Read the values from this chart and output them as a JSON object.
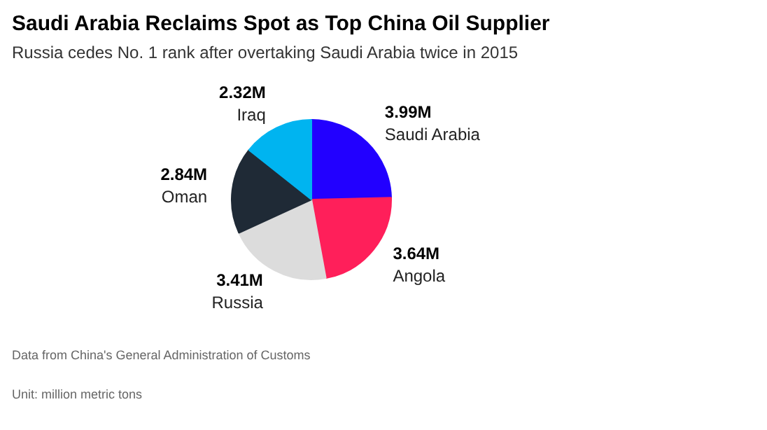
{
  "chart_data": {
    "type": "pie",
    "title": "Saudi Arabia Reclaims Spot as Top China Oil Supplier",
    "subtitle": "Russia cedes No. 1 rank after overtaking Saudi Arabia twice in 2015",
    "categories": [
      "Saudi Arabia",
      "Angola",
      "Russia",
      "Oman",
      "Iraq"
    ],
    "values": [
      3.99,
      3.64,
      3.41,
      2.84,
      2.32
    ],
    "value_labels": [
      "3.99M",
      "3.64M",
      "3.41M",
      "2.84M",
      "2.32M"
    ],
    "colors": [
      "#2200ff",
      "#ff1f5a",
      "#dcdcdc",
      "#1f2a36",
      "#00b4f0"
    ],
    "annotations": [
      "Data from China's General Administration of Customs",
      "Unit: million metric tons"
    ]
  }
}
